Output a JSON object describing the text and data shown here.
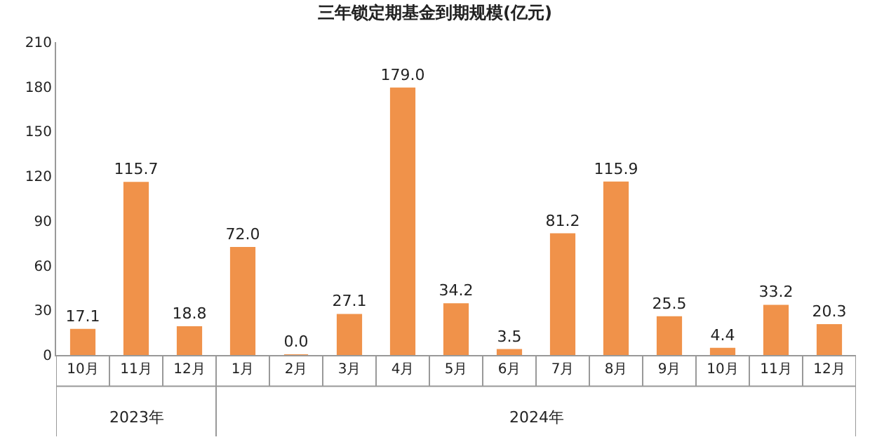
{
  "chart_data": {
    "type": "bar",
    "title": "三年锁定期基金到期规模(亿元)",
    "categories": [
      "10月",
      "11月",
      "12月",
      "1月",
      "2月",
      "3月",
      "4月",
      "5月",
      "6月",
      "7月",
      "8月",
      "9月",
      "10月",
      "11月",
      "12月"
    ],
    "values": [
      17.1,
      115.7,
      18.8,
      72.0,
      0.0,
      27.1,
      179.0,
      34.2,
      3.5,
      81.2,
      115.9,
      25.5,
      4.4,
      33.2,
      20.3
    ],
    "value_labels": [
      "17.1",
      "115.7",
      "18.8",
      "72.0",
      "0.0",
      "27.1",
      "179.0",
      "34.2",
      "3.5",
      "81.2",
      "115.9",
      "25.5",
      "4.4",
      "33.2",
      "20.3"
    ],
    "color": "#f0924a",
    "ylim": [
      0,
      210
    ],
    "yticks": [
      0,
      30,
      60,
      90,
      120,
      150,
      180,
      210
    ],
    "annotations": [
      "2023年",
      "2024年"
    ]
  }
}
